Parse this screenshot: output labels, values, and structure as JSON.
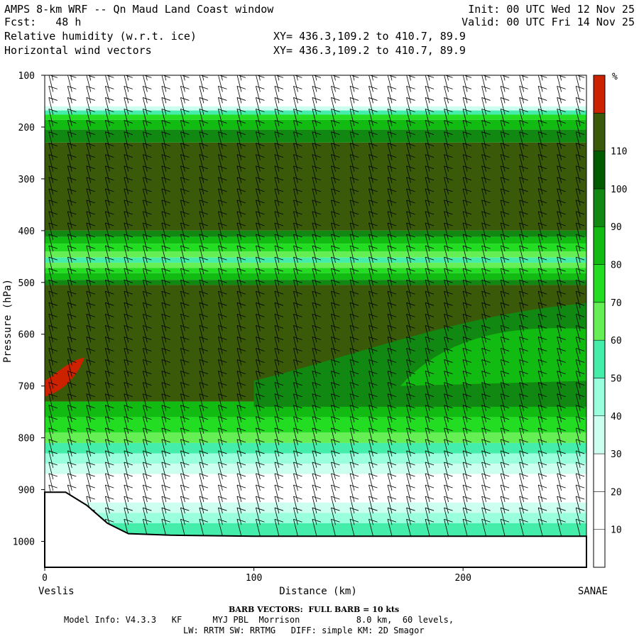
{
  "header": {
    "title": "AMPS 8-km WRF -- Qn Maud Land Coast window",
    "fcst": "Fcst:   48 h",
    "field1": "Relative humidity (w.r.t. ice)",
    "field2": "Horizontal wind vectors",
    "init": "Init: 00 UTC Wed 12 Nov 25",
    "valid": "Valid: 00 UTC Fri 14 Nov 25",
    "xy1": "XY= 436.3,109.2 to 410.7, 89.9",
    "xy2": "XY= 436.3,109.2 to 410.7, 89.9"
  },
  "footer": {
    "barb_note": "BARB VECTORS:  FULL BARB = 10 kts",
    "model_info": "Model Info: V4.3.3   KF      MYJ PBL  Morrison           8.0 km,  60 levels,",
    "physics": "LW: RRTM SW: RRTMG   DIFF: simple KM: 2D Smagor"
  },
  "chart_data": {
    "type": "heatmap",
    "xlabel": "Distance (km)",
    "ylabel": "Pressure (hPa)",
    "x_start_label": "Veslis",
    "x_end_label": "SANAE",
    "xlim": [
      0,
      259
    ],
    "ylim": [
      1050,
      100
    ],
    "x_ticks": [
      0,
      100,
      200
    ],
    "y_ticks": [
      100,
      200,
      300,
      400,
      500,
      600,
      700,
      800,
      900,
      1000
    ],
    "colorbar": {
      "unit": "%",
      "levels": [
        10,
        20,
        30,
        40,
        50,
        60,
        70,
        80,
        90,
        100,
        110
      ],
      "colors": [
        "#ffffff",
        "#ffffff",
        "#ffffff",
        "#ccfff0",
        "#99ffdd",
        "#44eeaa",
        "#66ee55",
        "#22dd22",
        "#11bb11",
        "#118811",
        "#005a00",
        "#3a5a0a",
        "#cc2200"
      ]
    },
    "bands_description": [
      {
        "p_top": 100,
        "p_bottom": 160,
        "rh_level": "<10"
      },
      {
        "p_top": 160,
        "p_bottom": 190,
        "rh_level": "40-80"
      },
      {
        "p_top": 190,
        "p_bottom": 230,
        "rh_level": "80-100"
      },
      {
        "p_top": 230,
        "p_bottom": 400,
        "rh_level": "100-110"
      },
      {
        "p_top": 400,
        "p_bottom": 500,
        "rh_level": "60-100"
      },
      {
        "p_top": 500,
        "p_bottom": 730,
        "rh_level": "90-110"
      },
      {
        "p_top": 730,
        "p_bottom": 820,
        "rh_level": "70-90"
      },
      {
        "p_top": 820,
        "p_bottom": 990,
        "rh_level": "10-60"
      }
    ],
    "terrain": [
      {
        "x": 0,
        "p": 905
      },
      {
        "x": 10,
        "p": 905
      },
      {
        "x": 20,
        "p": 930
      },
      {
        "x": 30,
        "p": 965
      },
      {
        "x": 40,
        "p": 985
      },
      {
        "x": 60,
        "p": 988
      },
      {
        "x": 100,
        "p": 990
      },
      {
        "x": 259,
        "p": 990
      }
    ],
    "barb_note": "BARB VECTORS:  FULL BARB = 10 kts"
  }
}
